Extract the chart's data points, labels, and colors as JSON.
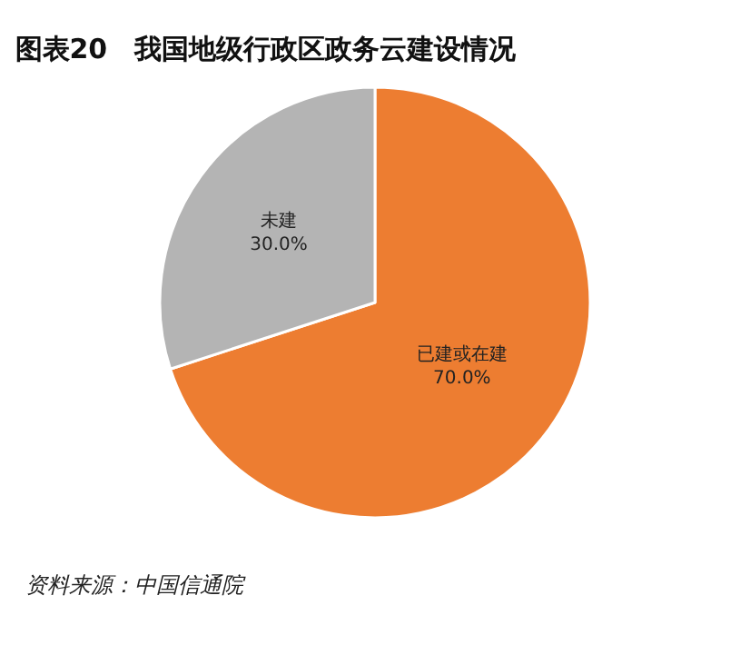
{
  "chart_data": {
    "type": "pie",
    "title": "图表20　我国地级行政区政务云建设情况",
    "categories": [
      "已建或在建",
      "未建"
    ],
    "values": [
      70,
      30
    ],
    "value_labels": [
      "70.0%",
      "30.0%"
    ],
    "colors": [
      "#ed7d31",
      "#b4b4b4"
    ],
    "legend": false,
    "annotations": [
      "资料来源：中国信通院"
    ]
  }
}
